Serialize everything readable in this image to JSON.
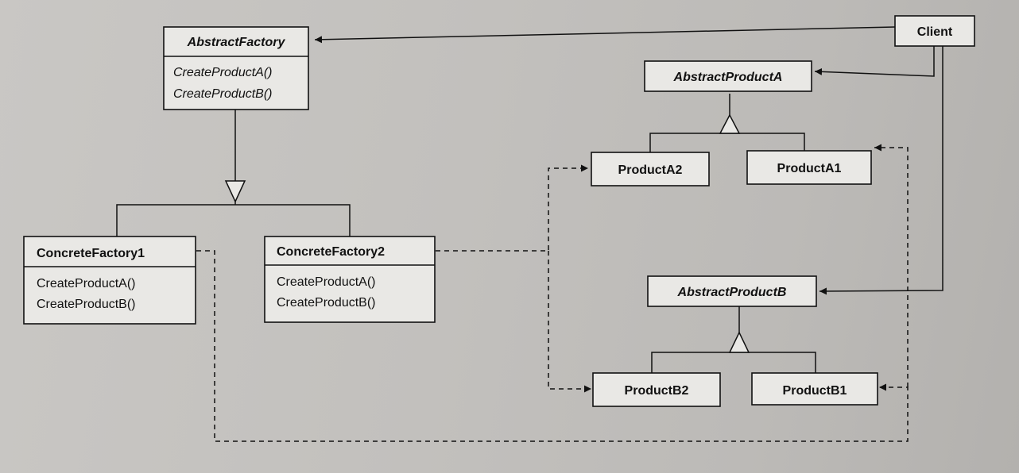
{
  "classes": {
    "abstract_factory": {
      "name": "AbstractFactory",
      "operations": [
        "CreateProductA()",
        "CreateProductB()"
      ]
    },
    "client": {
      "name": "Client"
    },
    "abstract_product_a": {
      "name": "AbstractProductA"
    },
    "product_a2": {
      "name": "ProductA2"
    },
    "product_a1": {
      "name": "ProductA1"
    },
    "concrete_factory1": {
      "name": "ConcreteFactory1",
      "operations": [
        "CreateProductA()",
        "CreateProductB()"
      ]
    },
    "concrete_factory2": {
      "name": "ConcreteFactory2",
      "operations": [
        "CreateProductA()",
        "CreateProductB()"
      ]
    },
    "abstract_product_b": {
      "name": "AbstractProductB"
    },
    "product_b2": {
      "name": "ProductB2"
    },
    "product_b1": {
      "name": "ProductB1"
    }
  }
}
